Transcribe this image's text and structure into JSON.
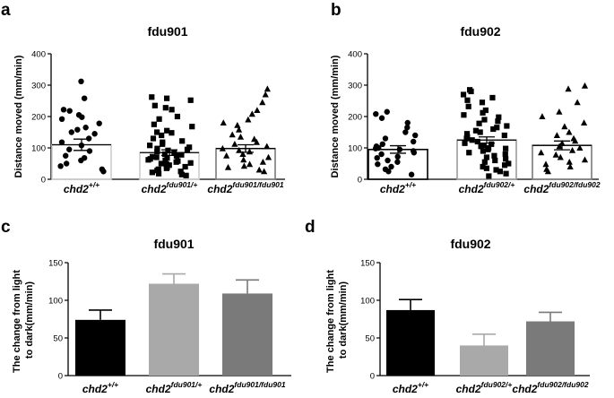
{
  "figure": {
    "panel_labels": [
      "a",
      "b",
      "c",
      "d"
    ]
  },
  "chart_data": [
    {
      "panel": "a",
      "type": "scatter",
      "title": "fdu901",
      "ylabel": "Distance moved (mm/min)",
      "ylim": [
        0,
        400
      ],
      "yticks": [
        "0",
        "100",
        "200",
        "300",
        "400"
      ],
      "categories": [
        {
          "base": "chd2",
          "sup": "+/+"
        },
        {
          "base": "chd2",
          "sup": "fdu901/+"
        },
        {
          "base": "chd2",
          "sup": "fdu901/fdu901"
        }
      ],
      "series": [
        {
          "marker": "circle",
          "mean": 110,
          "sem": 18,
          "bar_color": "#cfcfcf",
          "values": [
            312,
            258,
            222,
            218,
            205,
            198,
            192,
            178,
            165,
            158,
            150,
            145,
            130,
            118,
            108,
            95,
            90,
            75,
            68,
            60,
            50,
            42,
            32,
            25
          ]
        },
        {
          "marker": "square",
          "mean": 85,
          "sem": 9,
          "bar_color": "#cfcfcf",
          "values": [
            262,
            258,
            252,
            235,
            228,
            222,
            200,
            192,
            175,
            168,
            155,
            150,
            148,
            140,
            130,
            122,
            118,
            112,
            108,
            102,
            98,
            95,
            92,
            88,
            85,
            80,
            78,
            75,
            72,
            70,
            68,
            65,
            62,
            60,
            58,
            55,
            52,
            50,
            48,
            45,
            42,
            40,
            38,
            35,
            32,
            28,
            25,
            22,
            18,
            15,
            12
          ]
        },
        {
          "marker": "triangle",
          "mean": 98,
          "sem": 12,
          "bar_color": "#7a7a7a",
          "values": [
            288,
            270,
            245,
            220,
            208,
            190,
            180,
            172,
            158,
            142,
            135,
            128,
            118,
            112,
            105,
            98,
            92,
            88,
            80,
            75,
            70,
            62,
            55,
            48,
            42,
            38,
            30,
            25
          ]
        }
      ]
    },
    {
      "panel": "b",
      "type": "scatter",
      "title": "fdu902",
      "ylabel": "Distance moved (mm/min)",
      "ylim": [
        0,
        400
      ],
      "yticks": [
        "0",
        "100",
        "200",
        "300",
        "400"
      ],
      "categories": [
        {
          "base": "chd2",
          "sup": "+/+"
        },
        {
          "base": "chd2",
          "sup": "fdu902/+"
        },
        {
          "base": "chd2",
          "sup": "fdu902/fdu902"
        }
      ],
      "series": [
        {
          "marker": "circle",
          "mean": 95,
          "sem": 12,
          "bar_color": "#000000",
          "values": [
            215,
            208,
            195,
            180,
            165,
            150,
            140,
            130,
            120,
            112,
            105,
            100,
            98,
            95,
            90,
            85,
            80,
            72,
            68,
            60,
            55,
            48,
            40,
            32,
            25,
            15
          ]
        },
        {
          "marker": "square",
          "mean": 125,
          "sem": 10,
          "bar_color": "#9c9c9c",
          "values": [
            285,
            280,
            270,
            260,
            252,
            245,
            232,
            220,
            212,
            205,
            198,
            190,
            185,
            178,
            170,
            165,
            160,
            155,
            150,
            145,
            140,
            135,
            130,
            125,
            120,
            115,
            112,
            108,
            105,
            100,
            98,
            95,
            90,
            85,
            80,
            75,
            70,
            65,
            60,
            55,
            50,
            45,
            40,
            35,
            30,
            25,
            18,
            10
          ]
        },
        {
          "marker": "triangle",
          "mean": 108,
          "sem": 14,
          "bar_color": "#7a7a7a",
          "values": [
            298,
            288,
            245,
            215,
            200,
            180,
            168,
            150,
            140,
            130,
            122,
            115,
            105,
            100,
            92,
            85,
            78,
            70,
            62,
            55,
            48,
            40,
            32,
            25
          ]
        }
      ]
    },
    {
      "panel": "c",
      "type": "bar",
      "title": "fdu901",
      "ylabel": "The change from light to dark(mm/min)",
      "ylim": [
        0,
        150
      ],
      "yticks": [
        "0",
        "50",
        "100",
        "150"
      ],
      "categories": [
        {
          "base": "chd2",
          "sup": "+/+"
        },
        {
          "base": "chd2",
          "sup": "fdu901/+"
        },
        {
          "base": "chd2",
          "sup": "fdu901/fdu901"
        }
      ],
      "values": [
        74,
        122,
        109
      ],
      "errors": [
        13,
        13,
        18
      ],
      "colors": [
        "#000000",
        "#a9a9a9",
        "#7a7a7a"
      ]
    },
    {
      "panel": "d",
      "type": "bar",
      "title": "fdu902",
      "ylabel": "The change from light to dark(mm/min)",
      "ylim": [
        0,
        150
      ],
      "yticks": [
        "0",
        "50",
        "100",
        "150"
      ],
      "categories": [
        {
          "base": "chd2",
          "sup": "+/+"
        },
        {
          "base": "chd2",
          "sup": "fdu902/+"
        },
        {
          "base": "chd2",
          "sup": "fdu902/fdu902"
        }
      ],
      "values": [
        87,
        40,
        72
      ],
      "errors": [
        14,
        15,
        12
      ],
      "colors": [
        "#000000",
        "#a9a9a9",
        "#7a7a7a"
      ]
    }
  ]
}
